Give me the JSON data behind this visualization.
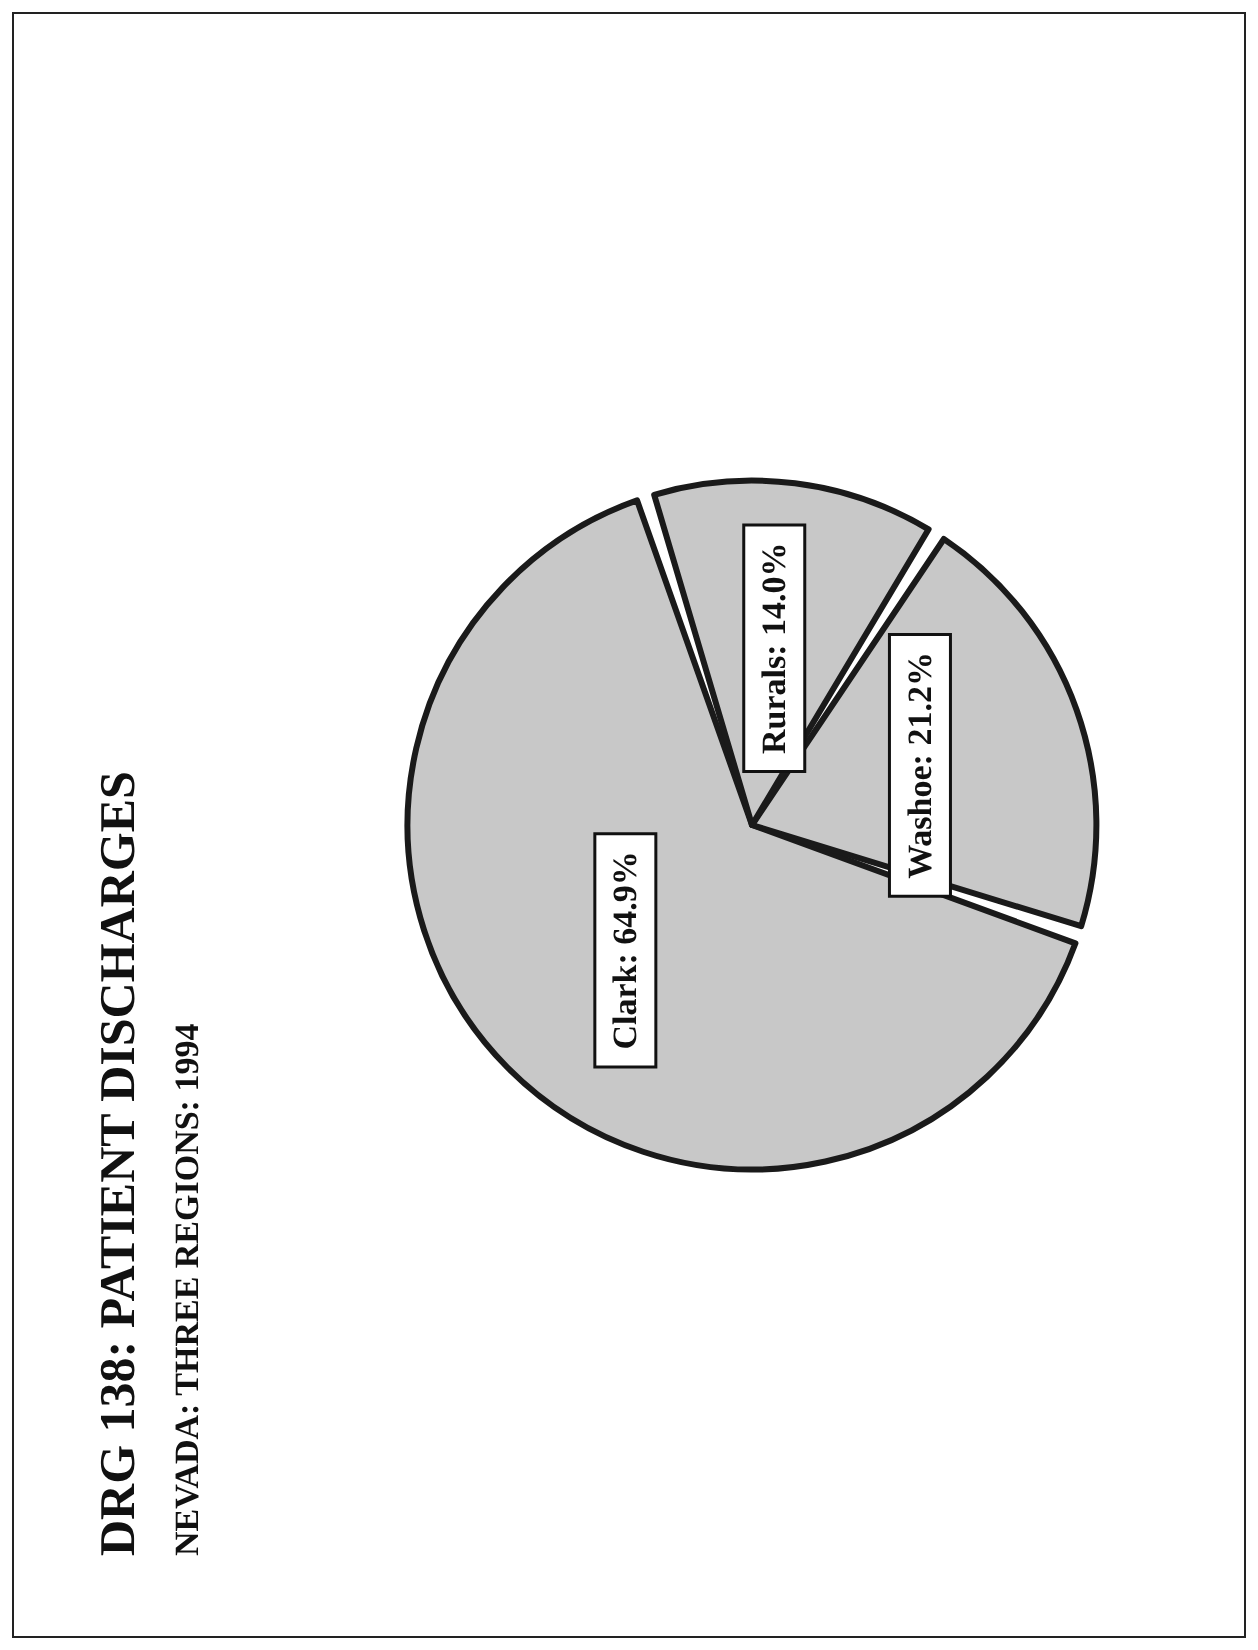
{
  "chart_data": {
    "type": "pie",
    "title": "DRG 138: PATIENT DISCHARGES",
    "subtitle": "NEVADA: THREE REGIONS: 1994",
    "categories": [
      "Clark",
      "Washoe",
      "Rurals"
    ],
    "values": [
      64.9,
      21.2,
      14.0
    ],
    "colors": [
      "#c8c8c8",
      "#c8c8c8",
      "#c8c8c8"
    ],
    "value_labels": [
      "64.9%",
      "21.2%",
      "14.0%"
    ]
  }
}
